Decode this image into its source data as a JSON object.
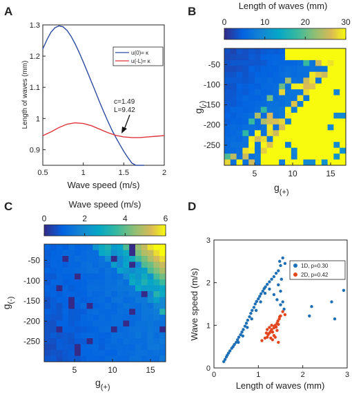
{
  "panel_letters": [
    "A",
    "B",
    "C",
    "D"
  ],
  "chart_data": [
    {
      "panel": "A",
      "type": "line",
      "xlabel": "Wave speed (m/s)",
      "ylabel": "Length of waves (mm)",
      "xlim": [
        0.5,
        2.0
      ],
      "ylim": [
        0.85,
        1.3
      ],
      "xticks": [
        "0.5",
        "1",
        "1.5",
        "2"
      ],
      "yticks": [
        "0.9",
        "1",
        "1.1",
        "1.2",
        "1.3"
      ],
      "legend_position": "top-right",
      "series": [
        {
          "name": "u(0)= κ",
          "color": "#2c4aa0",
          "x": [
            0.5,
            0.55,
            0.6,
            0.65,
            0.7,
            0.75,
            0.8,
            0.85,
            0.9,
            0.95,
            1.0,
            1.05,
            1.1,
            1.15,
            1.2,
            1.25,
            1.3,
            1.35,
            1.4,
            1.45,
            1.5,
            1.55,
            1.6,
            1.65,
            1.7,
            1.75
          ],
          "y": [
            1.223,
            1.252,
            1.276,
            1.291,
            1.297,
            1.294,
            1.282,
            1.263,
            1.239,
            1.211,
            1.181,
            1.15,
            1.118,
            1.086,
            1.054,
            1.023,
            0.993,
            0.965,
            0.94,
            0.917,
            0.895,
            0.875,
            0.857,
            0.84,
            0.825,
            0.812
          ]
        },
        {
          "name": "u(-L)= κ",
          "color": "#e0343c",
          "x": [
            0.5,
            0.6,
            0.7,
            0.8,
            0.9,
            1.0,
            1.1,
            1.2,
            1.3,
            1.4,
            1.5,
            1.6,
            1.7,
            1.8,
            1.9,
            2.0
          ],
          "y": [
            0.945,
            0.957,
            0.971,
            0.982,
            0.986,
            0.984,
            0.977,
            0.966,
            0.955,
            0.946,
            0.941,
            0.939,
            0.939,
            0.941,
            0.943,
            0.945
          ]
        }
      ],
      "annotation": {
        "text_lines": [
          "c=1.49",
          "L=9.42"
        ],
        "x": 1.49,
        "y": 0.942
      }
    },
    {
      "panel": "B",
      "type": "heatmap",
      "title": "Length of waves (mm)",
      "colorbar_range": [
        0,
        30
      ],
      "colorbar_ticks": [
        "0",
        "10",
        "20",
        "30"
      ],
      "xlabel": "g",
      "xlabel_sub": "(+)",
      "ylabel": "g",
      "ylabel_sub": "(-)",
      "xlim": [
        1,
        17
      ],
      "ylim": [
        -300,
        -10
      ],
      "xticks": [
        "5",
        "10",
        "15"
      ],
      "yticks": [
        "-50",
        "-100",
        "-150",
        "-200",
        "-250"
      ],
      "grid_size": [
        20,
        20
      ],
      "cell_values": "pattern: 2-6 mm smoothly rising toward bottom-right; saturated ~30 mm cells in upper-right region, dense at top-right"
    },
    {
      "panel": "C",
      "type": "heatmap",
      "title": "Wave speed (m/s)",
      "colorbar_range": [
        0,
        6
      ],
      "colorbar_ticks": [
        "0",
        "2",
        "4",
        "6"
      ],
      "xlabel": "g",
      "xlabel_sub": "(+)",
      "ylabel": "g",
      "ylabel_sub": "(-)",
      "xlim": [
        1,
        17
      ],
      "ylim": [
        -300,
        -10
      ],
      "xticks": [
        "5",
        "10",
        "15"
      ],
      "yticks": [
        "-50",
        "-100",
        "-150",
        "-200",
        "-250"
      ],
      "grid_size": [
        20,
        20
      ],
      "cell_values": "pattern: ~0.5-1.5 m/s in most cells; rising to ~5-6 m/s in top-right corner; scattered ~0 m/s cells"
    },
    {
      "panel": "D",
      "type": "scatter",
      "xlabel": "Length of waves (mm)",
      "ylabel": "Wave speed (m/s)",
      "xlim": [
        0,
        3
      ],
      "ylim": [
        0,
        3
      ],
      "xticks": [
        "0",
        "1",
        "2",
        "3"
      ],
      "yticks": [
        "0",
        "1",
        "2",
        "3"
      ],
      "legend_position": "top-right",
      "series": [
        {
          "name": "1D, p=0.30",
          "color": "#1f6fb5",
          "points": [
            [
              0.22,
              0.15
            ],
            [
              0.25,
              0.2
            ],
            [
              0.28,
              0.26
            ],
            [
              0.3,
              0.3
            ],
            [
              0.33,
              0.35
            ],
            [
              0.36,
              0.4
            ],
            [
              0.4,
              0.46
            ],
            [
              0.43,
              0.5
            ],
            [
              0.46,
              0.55
            ],
            [
              0.5,
              0.6
            ],
            [
              0.53,
              0.66
            ],
            [
              0.56,
              0.72
            ],
            [
              0.6,
              0.78
            ],
            [
              0.63,
              0.84
            ],
            [
              0.66,
              0.9
            ],
            [
              0.7,
              0.98
            ],
            [
              0.73,
              1.05
            ],
            [
              0.76,
              1.12
            ],
            [
              0.8,
              1.2
            ],
            [
              0.83,
              1.28
            ],
            [
              0.86,
              1.35
            ],
            [
              0.9,
              1.42
            ],
            [
              0.93,
              1.5
            ],
            [
              0.96,
              1.56
            ],
            [
              1.0,
              1.62
            ],
            [
              1.03,
              1.68
            ],
            [
              1.06,
              1.74
            ],
            [
              1.1,
              1.8
            ],
            [
              1.13,
              1.86
            ],
            [
              1.16,
              1.9
            ],
            [
              1.2,
              1.96
            ],
            [
              1.25,
              2.02
            ],
            [
              1.3,
              2.08
            ],
            [
              1.35,
              2.14
            ],
            [
              1.4,
              2.22
            ],
            [
              1.45,
              2.28
            ],
            [
              1.5,
              2.4
            ],
            [
              1.55,
              2.58
            ],
            [
              1.6,
              2.45
            ],
            [
              1.48,
              2.5
            ],
            [
              1.52,
              2.08
            ],
            [
              1.45,
              1.95
            ],
            [
              1.5,
              1.8
            ],
            [
              1.55,
              1.55
            ],
            [
              1.58,
              1.38
            ],
            [
              1.5,
              1.48
            ],
            [
              1.42,
              1.6
            ],
            [
              1.35,
              1.72
            ],
            [
              1.25,
              1.85
            ],
            [
              1.15,
              1.75
            ],
            [
              1.05,
              1.55
            ],
            [
              0.95,
              1.35
            ],
            [
              0.85,
              1.15
            ],
            [
              0.75,
              0.95
            ],
            [
              0.65,
              0.75
            ],
            [
              0.55,
              0.6
            ],
            [
              2.2,
              1.44
            ],
            [
              2.15,
              1.22
            ],
            [
              2.72,
              1.15
            ],
            [
              2.65,
              1.55
            ],
            [
              2.92,
              1.82
            ]
          ]
        },
        {
          "name": "2D, p=0.42",
          "color": "#e2461e",
          "points": [
            [
              1.08,
              0.64
            ],
            [
              1.15,
              0.7
            ],
            [
              1.2,
              0.72
            ],
            [
              1.22,
              0.78
            ],
            [
              1.25,
              0.82
            ],
            [
              1.28,
              0.86
            ],
            [
              1.3,
              0.9
            ],
            [
              1.32,
              0.84
            ],
            [
              1.35,
              0.94
            ],
            [
              1.36,
              0.98
            ],
            [
              1.38,
              1.0
            ],
            [
              1.4,
              0.96
            ],
            [
              1.42,
              1.05
            ],
            [
              1.44,
              1.1
            ],
            [
              1.45,
              1.02
            ],
            [
              1.47,
              1.15
            ],
            [
              1.48,
              1.2
            ],
            [
              1.5,
              1.22
            ],
            [
              1.32,
              0.66
            ],
            [
              1.38,
              0.72
            ],
            [
              1.45,
              0.6
            ],
            [
              1.3,
              1.0
            ],
            [
              1.25,
              0.95
            ],
            [
              1.2,
              0.9
            ],
            [
              1.55,
              1.32
            ],
            [
              1.6,
              1.25
            ],
            [
              1.35,
              0.76
            ],
            [
              1.42,
              0.88
            ],
            [
              1.28,
              0.7
            ],
            [
              1.18,
              0.82
            ]
          ]
        }
      ]
    }
  ]
}
